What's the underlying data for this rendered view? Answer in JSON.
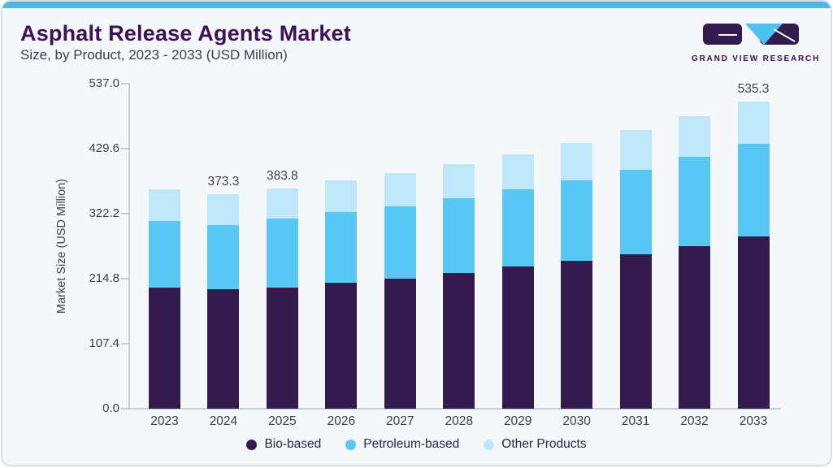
{
  "page": {
    "title": "Asphalt Release Agents Market",
    "subtitle": "Size, by Product, 2023 - 2033 (USD Million)"
  },
  "logo": {
    "brand": "GRAND VIEW RESEARCH"
  },
  "colors": {
    "accent_bar": "#4cb7e8",
    "card_background": "#f4f8fa",
    "title": "#3e1057",
    "bio_based": "#331b4e",
    "petroleum_based": "#58c7f3",
    "other_products": "#bfe7fa",
    "axis": "#c6cdd4"
  },
  "chart_data": {
    "type": "bar",
    "stacked": true,
    "title": "Asphalt Release Agents Market",
    "subtitle": "Size, by Product, 2023 - 2033 (USD Million)",
    "xlabel": "",
    "ylabel": "Market Size (USD Million)",
    "grid": false,
    "legend_position": "bottom",
    "ylim": [
      0,
      537
    ],
    "categories": [
      "2023",
      "2024",
      "2025",
      "2026",
      "2027",
      "2028",
      "2029",
      "2030",
      "2031",
      "2032",
      "2033"
    ],
    "series": [
      {
        "name": "Bio-based",
        "color": "#331b4e",
        "values": [
          210.6,
          208.2,
          211.0,
          219.5,
          227.0,
          236.9,
          247.4,
          257.7,
          269.1,
          283.6,
          299.8
        ]
      },
      {
        "name": "Petroleum-based",
        "color": "#58c7f3",
        "values": [
          117.2,
          112.2,
          120.4,
          122.8,
          126.1,
          130.3,
          135.4,
          140.2,
          146.8,
          155.0,
          161.8
        ]
      },
      {
        "name": "Other Products",
        "color": "#bfe7fa",
        "values": [
          54.5,
          52.9,
          52.4,
          54.9,
          57.6,
          59.0,
          60.9,
          65.2,
          69.4,
          71.2,
          73.7
        ]
      }
    ],
    "totals": [
      382.3,
      373.3,
      383.8,
      397.2,
      410.7,
      426.2,
      443.7,
      463.1,
      485.3,
      509.8,
      535.3
    ],
    "annotations": [
      {
        "category": "2024",
        "label": "373.3"
      },
      {
        "category": "2025",
        "label": "383.8"
      },
      {
        "category": "2033",
        "label": "535.3"
      }
    ],
    "yticks": [
      {
        "value": 537.0,
        "label": "537.0"
      },
      {
        "value": 429.6,
        "label": "429.6"
      },
      {
        "value": 322.2,
        "label": "322.2"
      },
      {
        "value": 214.8,
        "label": "214.8"
      },
      {
        "value": 107.4,
        "label": "107.4"
      },
      {
        "value": 0.0,
        "label": "0.0"
      }
    ]
  }
}
